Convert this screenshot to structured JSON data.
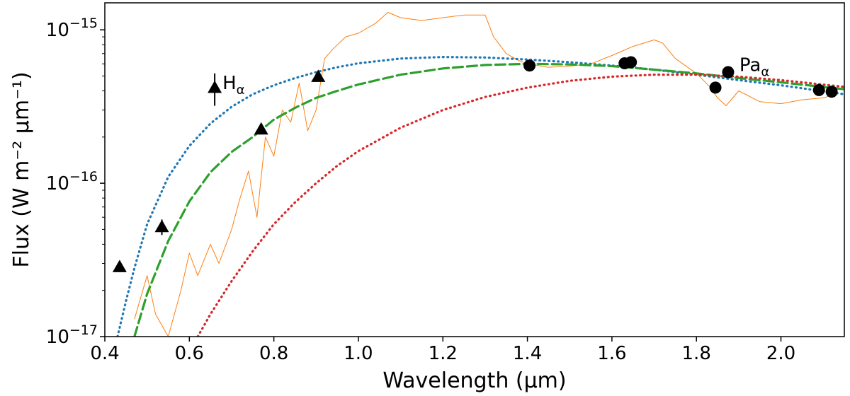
{
  "chart_data": {
    "type": "scatter",
    "title": "",
    "xlabel": "Wavelength (μm)",
    "ylabel": "Flux (W m⁻² μm⁻¹)",
    "xlim": [
      0.4,
      2.15
    ],
    "ylim": [
      1e-17,
      1.5e-15
    ],
    "yscale": "log",
    "grid": false,
    "x_ticks": [
      {
        "value": 0.4,
        "label": "0.4"
      },
      {
        "value": 0.6,
        "label": "0.6"
      },
      {
        "value": 0.8,
        "label": "0.8"
      },
      {
        "value": 1.0,
        "label": "1.0"
      },
      {
        "value": 1.2,
        "label": "1.2"
      },
      {
        "value": 1.4,
        "label": "1.4"
      },
      {
        "value": 1.6,
        "label": "1.6"
      },
      {
        "value": 1.8,
        "label": "1.8"
      },
      {
        "value": 2.0,
        "label": "2.0"
      }
    ],
    "y_ticks": [
      {
        "value": 1e-17,
        "base": "10",
        "exp": "−17"
      },
      {
        "value": 1e-16,
        "base": "10",
        "exp": "−16"
      },
      {
        "value": 1e-15,
        "base": "10",
        "exp": "−15"
      }
    ],
    "series": [
      {
        "name": "model-blue",
        "kind": "curve",
        "style": "dotted",
        "color": "#1f77b4",
        "x": [
          0.43,
          0.45,
          0.47,
          0.5,
          0.55,
          0.6,
          0.65,
          0.7,
          0.75,
          0.8,
          0.85,
          0.9,
          0.95,
          1.0,
          1.1,
          1.2,
          1.3,
          1.4,
          1.5,
          1.6,
          1.7,
          1.8,
          1.9,
          2.0,
          2.15
        ],
        "y": [
          1e-17,
          1.7e-17,
          2.8e-17,
          5.4e-17,
          1.1e-16,
          1.75e-16,
          2.45e-16,
          3.15e-16,
          3.8e-16,
          4.35e-16,
          4.85e-16,
          5.3e-16,
          5.7e-16,
          6.05e-16,
          6.5e-16,
          6.65e-16,
          6.6e-16,
          6.4e-16,
          6.15e-16,
          5.85e-16,
          5.5e-16,
          5.1e-16,
          4.7e-16,
          4.35e-16,
          3.8e-16
        ]
      },
      {
        "name": "model-green",
        "kind": "curve",
        "style": "dashed",
        "color": "#2ca02c",
        "x": [
          0.47,
          0.5,
          0.55,
          0.6,
          0.65,
          0.7,
          0.75,
          0.8,
          0.85,
          0.9,
          0.95,
          1.0,
          1.1,
          1.2,
          1.3,
          1.4,
          1.5,
          1.6,
          1.7,
          1.8,
          1.9,
          2.0,
          2.15
        ],
        "y": [
          1e-17,
          1.9e-17,
          4.2e-17,
          7.6e-17,
          1.18e-16,
          1.6e-16,
          2e-16,
          2.6e-16,
          3.1e-16,
          3.6e-16,
          4e-16,
          4.4e-16,
          5.1e-16,
          5.6e-16,
          5.9e-16,
          6e-16,
          5.95e-16,
          5.8e-16,
          5.5e-16,
          5.2e-16,
          4.85e-16,
          4.55e-16,
          4.1e-16
        ]
      },
      {
        "name": "model-red",
        "kind": "curve",
        "style": "dotted",
        "color": "#d62728",
        "x": [
          0.62,
          0.65,
          0.7,
          0.75,
          0.8,
          0.85,
          0.9,
          0.95,
          1.0,
          1.1,
          1.2,
          1.3,
          1.4,
          1.5,
          1.6,
          1.7,
          1.8,
          1.9,
          2.0,
          2.15
        ],
        "y": [
          1e-17,
          1.4e-17,
          2.3e-17,
          3.6e-17,
          5.4e-17,
          7.5e-17,
          1e-16,
          1.3e-16,
          1.62e-16,
          2.3e-16,
          3e-16,
          3.65e-16,
          4.2e-16,
          4.65e-16,
          4.95e-16,
          5.1e-16,
          5.1e-16,
          4.95e-16,
          4.7e-16,
          4.25e-16
        ]
      },
      {
        "name": "spectrum",
        "kind": "spectrum",
        "color": "#ff7f0e",
        "x": [
          0.47,
          0.5,
          0.52,
          0.55,
          0.58,
          0.6,
          0.62,
          0.65,
          0.67,
          0.7,
          0.72,
          0.74,
          0.76,
          0.78,
          0.8,
          0.82,
          0.84,
          0.86,
          0.88,
          0.9,
          0.92,
          0.94,
          0.97,
          1.0,
          1.04,
          1.07,
          1.1,
          1.15,
          1.2,
          1.25,
          1.3,
          1.32,
          1.35,
          1.38,
          1.4,
          1.45,
          1.5,
          1.55,
          1.6,
          1.65,
          1.7,
          1.72,
          1.75,
          1.8,
          1.83,
          1.85,
          1.87,
          1.9,
          1.95,
          2.0,
          2.05,
          2.1,
          2.13
        ],
        "y": [
          1.3e-17,
          2.5e-17,
          1.4e-17,
          1e-17,
          2e-17,
          3.5e-17,
          2.5e-17,
          4e-17,
          3e-17,
          5e-17,
          8e-17,
          1.2e-16,
          6e-17,
          2e-16,
          1.5e-16,
          3e-16,
          2.5e-16,
          4.5e-16,
          2.2e-16,
          3e-16,
          6.5e-16,
          7.5e-16,
          9e-16,
          9.5e-16,
          1.1e-15,
          1.3e-15,
          1.2e-15,
          1.15e-15,
          1.2e-15,
          1.25e-15,
          1.25e-15,
          9e-16,
          7e-16,
          6.3e-16,
          6e-16,
          5.7e-16,
          5.8e-16,
          6e-16,
          6.8e-16,
          7.8e-16,
          8.6e-16,
          8.2e-16,
          6.5e-16,
          5.2e-16,
          4.3e-16,
          3.6e-16,
          3.2e-16,
          4e-16,
          3.4e-16,
          3.3e-16,
          3.5e-16,
          3.6e-16,
          3.8e-16
        ]
      },
      {
        "name": "photometry-triangles",
        "kind": "markers",
        "marker": "triangle",
        "color": "#000000",
        "x": [
          0.435,
          0.535,
          0.66,
          0.77,
          0.905
        ],
        "y": [
          2.85e-17,
          5.2e-17,
          4.2e-16,
          2.25e-16,
          4.95e-16
        ],
        "yerr": [
          0,
          6e-18,
          1e-16,
          0,
          0
        ]
      },
      {
        "name": "photometry-circles",
        "kind": "markers",
        "marker": "circle",
        "color": "#000000",
        "x": [
          1.405,
          1.63,
          1.645,
          1.845,
          1.875,
          2.09,
          2.12
        ],
        "y": [
          5.85e-16,
          6.05e-16,
          6.15e-16,
          4.2e-16,
          5.3e-16,
          4.05e-16,
          3.95e-16
        ]
      }
    ],
    "annotations": [
      {
        "name": "h-alpha",
        "base": "H",
        "sub": "α",
        "x": 0.665,
        "y": 4.2e-16
      },
      {
        "name": "pa-alpha",
        "base": "Pa",
        "sub": "α",
        "x": 1.885,
        "y": 5.5e-16
      }
    ]
  }
}
